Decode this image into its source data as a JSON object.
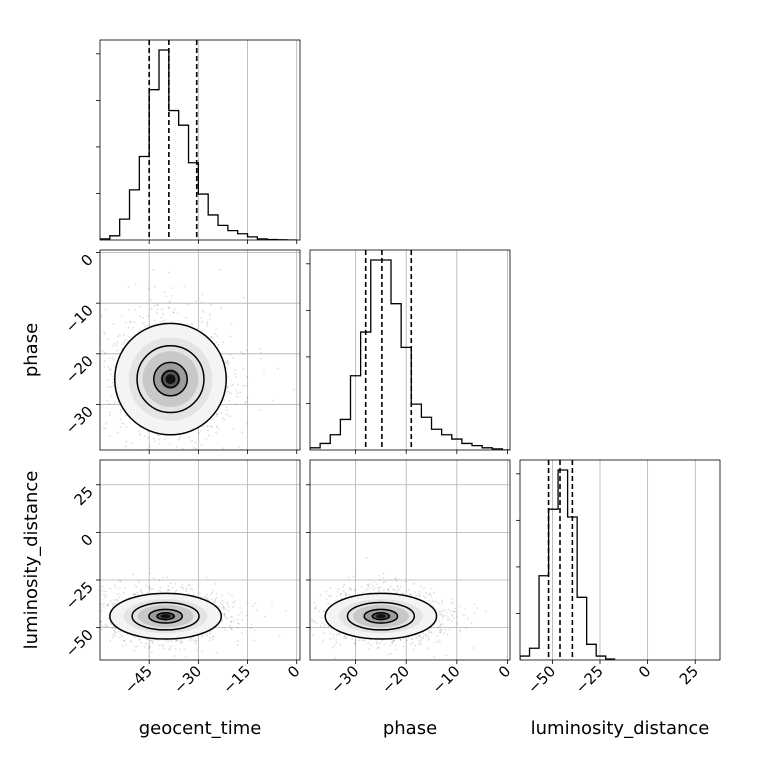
{
  "chart_data": {
    "type": "corner",
    "title": "",
    "parameters": [
      "geocent_time",
      "phase",
      "luminosity_distance"
    ],
    "labels": {
      "geocent_time": "geocent_time",
      "phase": "phase",
      "luminosity_distance": "luminosity_distance"
    },
    "ranges": {
      "geocent_time": [
        -60,
        1
      ],
      "phase": [
        -39,
        0.5
      ],
      "luminosity_distance": [
        -67,
        38
      ]
    },
    "ticks": {
      "geocent_time": [
        -45,
        -30,
        -15,
        0
      ],
      "phase": [
        -30,
        -20,
        -10,
        0
      ],
      "luminosity_distance": [
        -50,
        -25,
        0,
        25
      ]
    },
    "quantiles": {
      "geocent_time": [
        -45,
        -39,
        -30.5
      ],
      "phase": [
        -28,
        -24.8,
        -19
      ],
      "luminosity_distance": [
        -52,
        -46,
        -39.5
      ]
    },
    "histograms": {
      "geocent_time": {
        "edges": [
          -60,
          -57,
          -54,
          -51,
          -48,
          -45,
          -42,
          -39,
          -36,
          -33,
          -30,
          -27,
          -24,
          -21,
          -18,
          -15,
          -12,
          -9,
          -6,
          -3,
          0
        ],
        "counts": [
          0.5,
          2,
          10,
          24,
          40,
          72,
          91,
          62,
          55,
          37,
          22,
          12,
          7,
          4.5,
          3,
          1.5,
          0.5,
          0.2,
          0.1,
          0
        ]
      },
      "phase": {
        "edges": [
          -39,
          -37,
          -35,
          -33,
          -31,
          -29,
          -27,
          -25,
          -23,
          -21,
          -19,
          -17,
          -15,
          -13,
          -11,
          -9,
          -7,
          -5,
          -3,
          -1,
          0.5
        ],
        "counts": [
          1,
          3,
          7,
          14,
          34,
          54,
          87,
          87,
          67,
          47,
          21,
          15,
          9.5,
          7,
          5,
          3,
          2,
          1,
          0.5,
          0
        ]
      },
      "luminosity_distance": {
        "edges": [
          -67,
          -62,
          -57,
          -52,
          -47,
          -42,
          -37,
          -32,
          -27,
          -22,
          -17
        ],
        "counts": [
          2,
          6,
          43,
          77,
          97,
          73,
          32,
          8,
          2,
          0.5
        ]
      }
    },
    "density_2d": [
      {
        "x": "geocent_time",
        "y": "phase",
        "mean": [
          -38.5,
          -25
        ],
        "sd": [
          8.5,
          5.5
        ]
      },
      {
        "x": "geocent_time",
        "y": "luminosity_distance",
        "mean": [
          -40,
          -44
        ],
        "sd": [
          8.5,
          6
        ]
      },
      {
        "x": "phase",
        "y": "luminosity_distance",
        "mean": [
          -25,
          -44
        ],
        "sd": [
          5.5,
          6
        ]
      }
    ]
  }
}
